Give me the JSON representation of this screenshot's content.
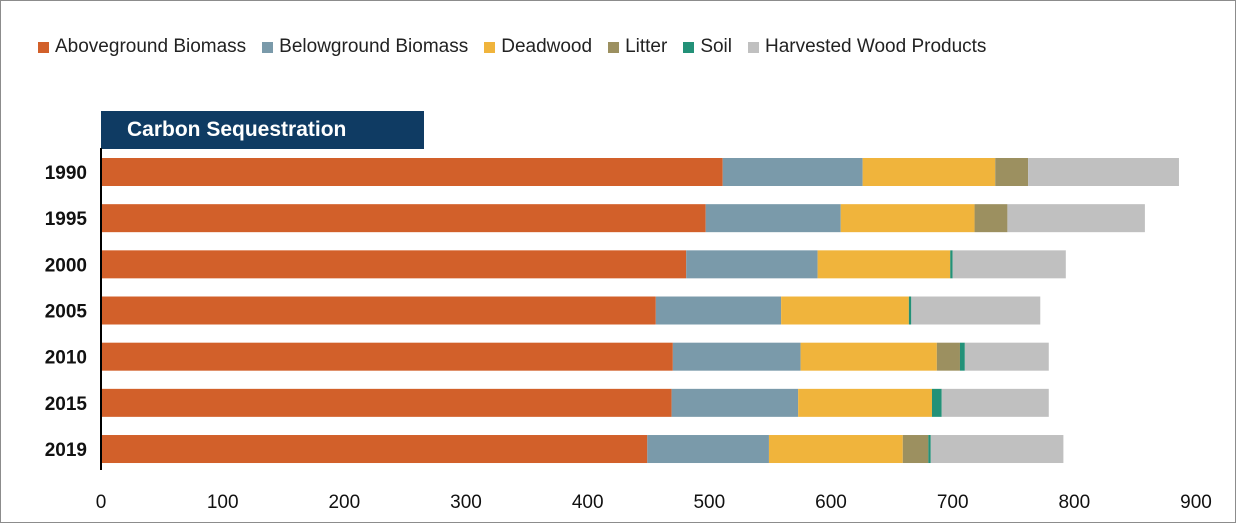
{
  "legend": [
    {
      "name": "Aboveground Biomass",
      "color": "#d2602a"
    },
    {
      "name": "Belowground Biomass",
      "color": "#7a9aaa"
    },
    {
      "name": "Deadwood",
      "color": "#f0b43c"
    },
    {
      "name": "Litter",
      "color": "#9c9060"
    },
    {
      "name": "Soil",
      "color": "#239178"
    },
    {
      "name": "Harvested Wood Products",
      "color": "#c0c0c0"
    }
  ],
  "chart_data": {
    "type": "bar",
    "orientation": "horizontal",
    "stacked": true,
    "title": "Carbon Sequestration",
    "categories": [
      "1990",
      "1995",
      "2000",
      "2005",
      "2010",
      "2015",
      "2019"
    ],
    "series": [
      {
        "name": "Aboveground Biomass",
        "color": "#d2602a",
        "values": [
          511,
          497,
          481,
          456,
          470,
          469,
          449
        ]
      },
      {
        "name": "Belowground Biomass",
        "color": "#7a9aaa",
        "values": [
          115,
          111,
          108,
          103,
          105,
          104,
          100
        ]
      },
      {
        "name": "Deadwood",
        "color": "#f0b43c",
        "values": [
          109,
          110,
          109,
          105,
          112,
          110,
          110
        ]
      },
      {
        "name": "Litter",
        "color": "#9c9060",
        "values": [
          27,
          27,
          0,
          0,
          19,
          0,
          21
        ]
      },
      {
        "name": "Soil",
        "color": "#239178",
        "values": [
          0,
          0,
          2,
          2,
          4,
          8,
          2
        ]
      },
      {
        "name": "Harvested Wood Products",
        "color": "#c0c0c0",
        "values": [
          124,
          113,
          93,
          106,
          69,
          88,
          109
        ]
      }
    ],
    "xlim": [
      0,
      900
    ],
    "xticks": [
      0,
      100,
      200,
      300,
      400,
      500,
      600,
      700,
      800,
      900
    ],
    "grid": false,
    "legend_position": "top"
  }
}
